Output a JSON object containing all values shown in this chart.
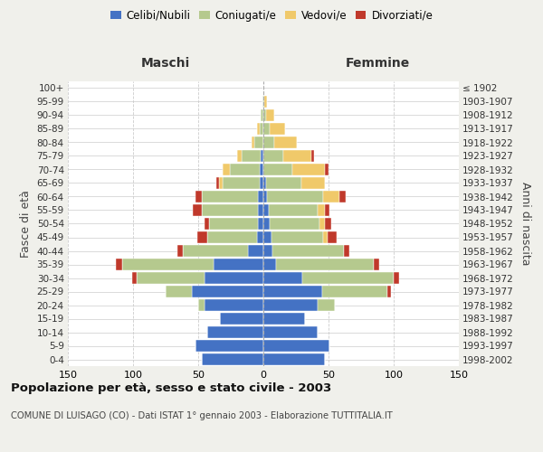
{
  "age_groups": [
    "0-4",
    "5-9",
    "10-14",
    "15-19",
    "20-24",
    "25-29",
    "30-34",
    "35-39",
    "40-44",
    "45-49",
    "50-54",
    "55-59",
    "60-64",
    "65-69",
    "70-74",
    "75-79",
    "80-84",
    "85-89",
    "90-94",
    "95-99",
    "100+"
  ],
  "birth_years": [
    "1998-2002",
    "1993-1997",
    "1988-1992",
    "1983-1987",
    "1978-1982",
    "1973-1977",
    "1968-1972",
    "1963-1967",
    "1958-1962",
    "1953-1957",
    "1948-1952",
    "1943-1947",
    "1938-1942",
    "1933-1937",
    "1928-1932",
    "1923-1927",
    "1918-1922",
    "1913-1917",
    "1908-1912",
    "1903-1907",
    "≤ 1902"
  ],
  "male": {
    "celibi": [
      47,
      52,
      43,
      33,
      45,
      55,
      45,
      38,
      12,
      5,
      4,
      4,
      4,
      3,
      3,
      2,
      0,
      0,
      0,
      0,
      0
    ],
    "coniugati": [
      0,
      0,
      0,
      0,
      5,
      20,
      52,
      70,
      50,
      38,
      38,
      43,
      43,
      28,
      23,
      15,
      7,
      3,
      2,
      1,
      0
    ],
    "vedovi": [
      0,
      0,
      0,
      0,
      0,
      0,
      0,
      0,
      0,
      0,
      0,
      0,
      0,
      3,
      5,
      3,
      2,
      2,
      0,
      0,
      0
    ],
    "divorziati": [
      0,
      0,
      0,
      0,
      0,
      0,
      4,
      5,
      4,
      8,
      3,
      7,
      5,
      2,
      0,
      0,
      0,
      0,
      0,
      0,
      0
    ]
  },
  "female": {
    "nubili": [
      47,
      51,
      42,
      32,
      42,
      45,
      30,
      10,
      7,
      6,
      5,
      4,
      3,
      2,
      0,
      0,
      0,
      0,
      0,
      0,
      0
    ],
    "coniugate": [
      0,
      0,
      0,
      0,
      13,
      50,
      70,
      75,
      55,
      40,
      38,
      38,
      43,
      27,
      22,
      15,
      8,
      5,
      2,
      1,
      0
    ],
    "vedove": [
      0,
      0,
      0,
      0,
      0,
      0,
      0,
      0,
      0,
      3,
      4,
      5,
      12,
      18,
      25,
      22,
      18,
      12,
      6,
      2,
      0
    ],
    "divorziate": [
      0,
      0,
      0,
      0,
      0,
      3,
      4,
      4,
      4,
      7,
      5,
      4,
      5,
      0,
      3,
      2,
      0,
      0,
      0,
      0,
      0
    ]
  },
  "colors": {
    "celibi": "#4472c4",
    "coniugati": "#b5c98e",
    "vedovi": "#f0c96a",
    "divorziati": "#c0392b"
  },
  "xlim": 150,
  "title": "Popolazione per età, sesso e stato civile - 2003",
  "subtitle": "COMUNE DI LUISAGO (CO) - Dati ISTAT 1° gennaio 2003 - Elaborazione TUTTITALIA.IT",
  "ylabel_left": "Fasce di età",
  "ylabel_right": "Anni di nascita",
  "xlabel_left": "Maschi",
  "xlabel_right": "Femmine",
  "bg_color": "#f0f0eb",
  "plot_bg_color": "#ffffff"
}
